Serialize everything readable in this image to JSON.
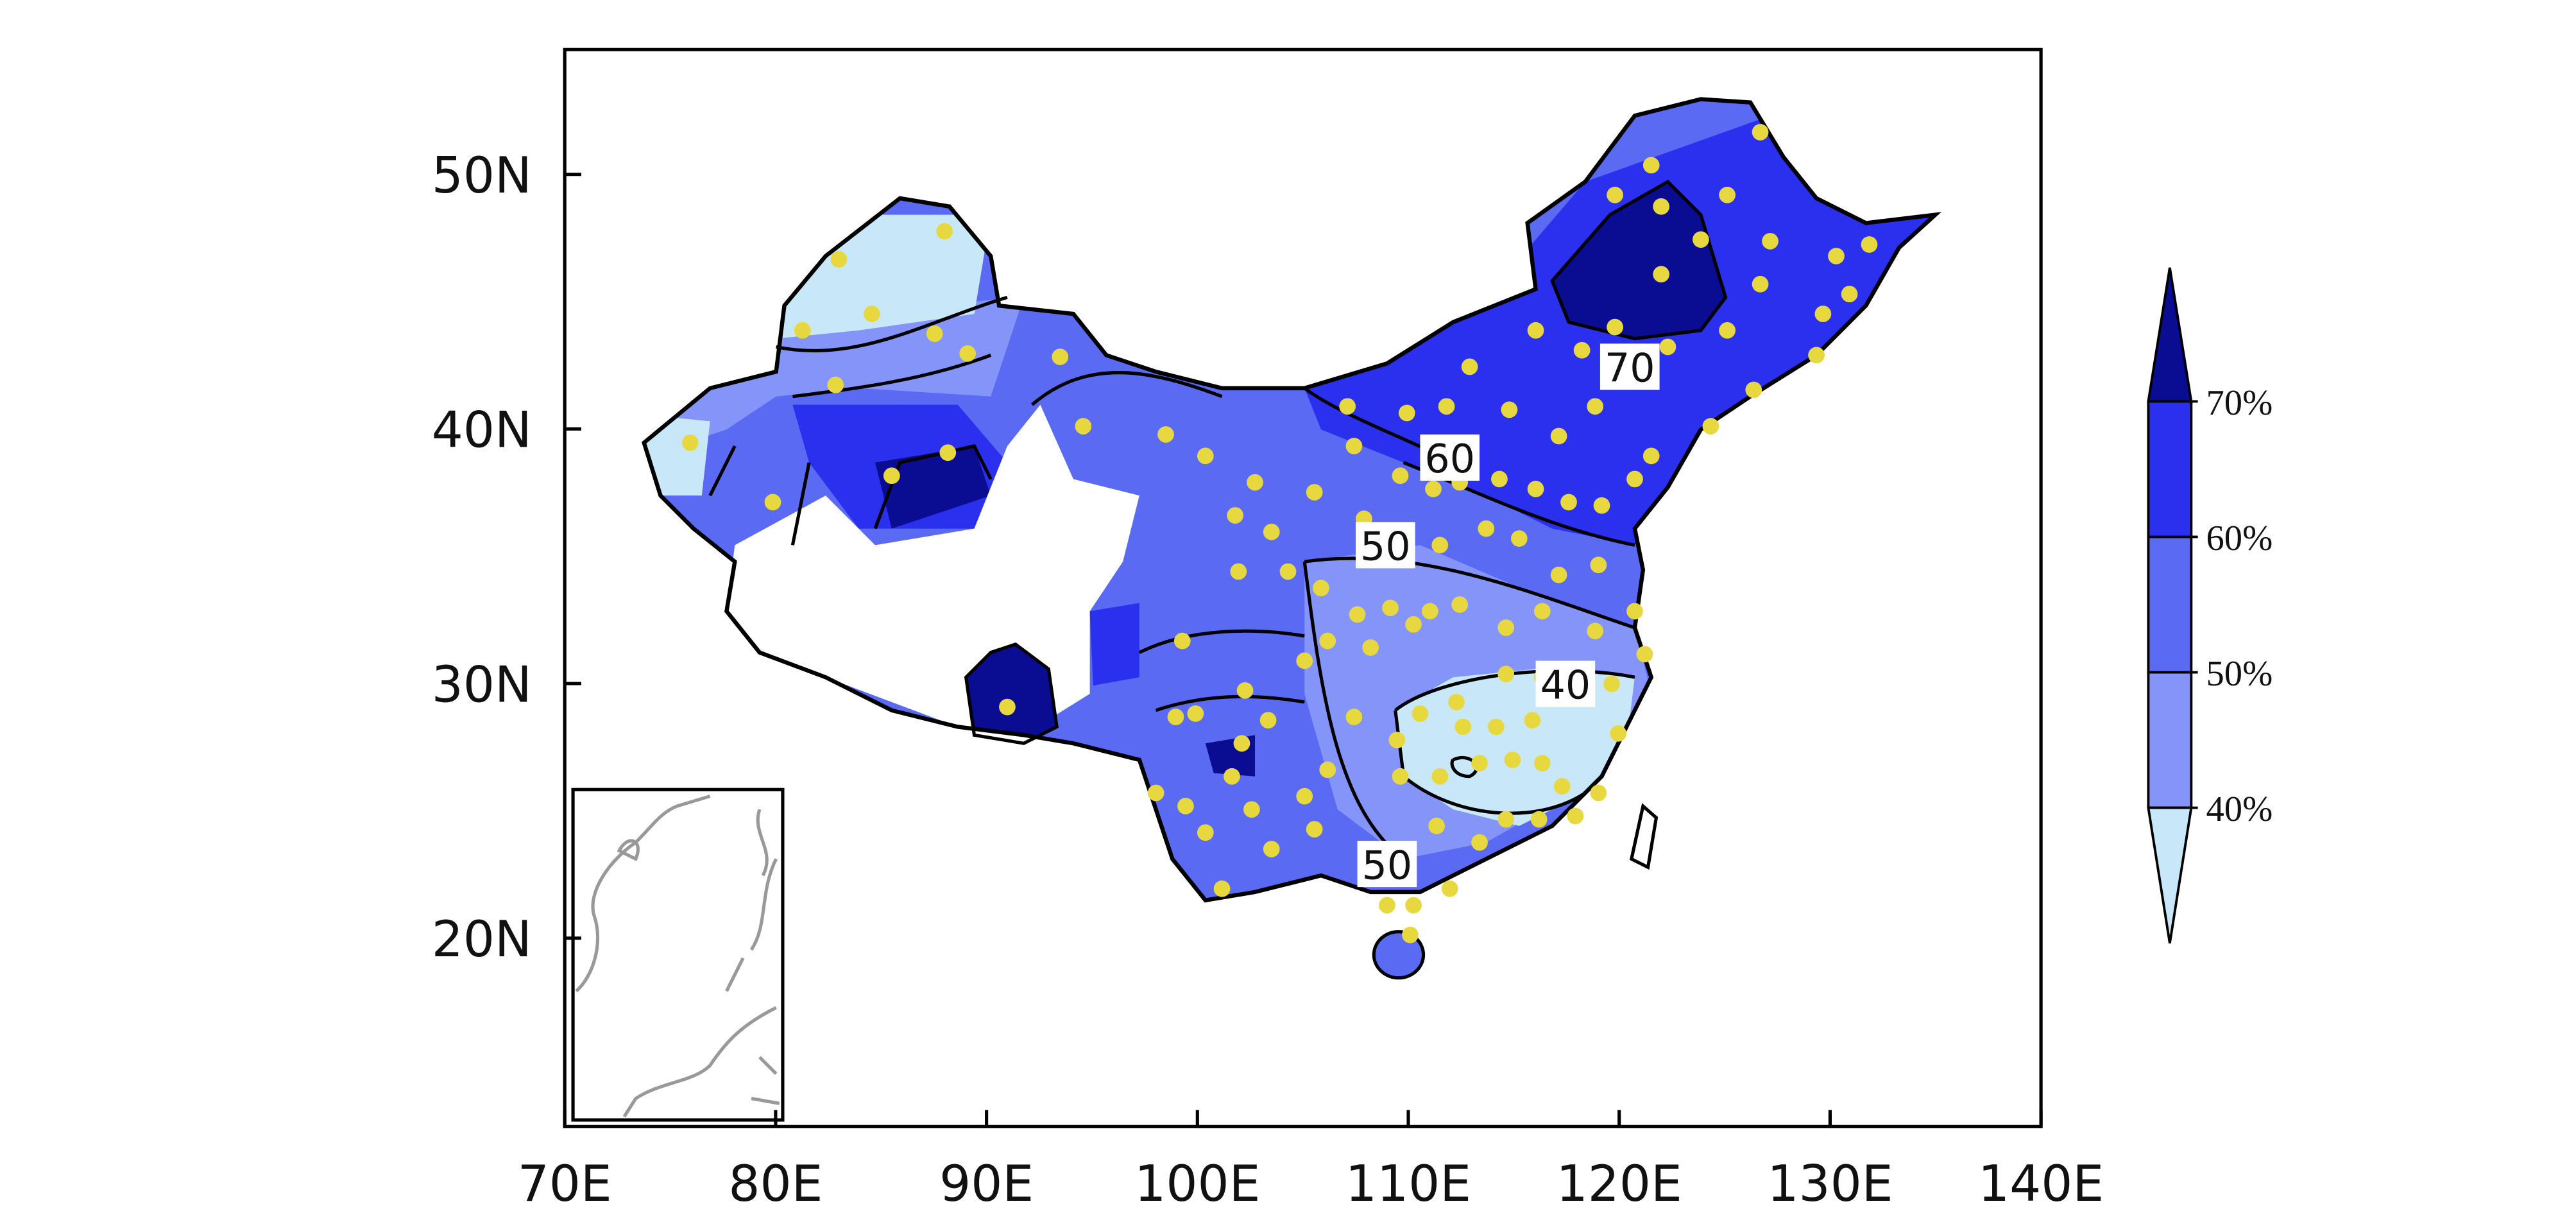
{
  "map": {
    "xlim": [
      70,
      140
    ],
    "ylim": [
      12.6,
      54.9
    ],
    "xticks": [
      {
        "value": 70,
        "label": "70E"
      },
      {
        "value": 80,
        "label": "80E"
      },
      {
        "value": 90,
        "label": "90E"
      },
      {
        "value": 100,
        "label": "100E"
      },
      {
        "value": 110,
        "label": "110E"
      },
      {
        "value": 120,
        "label": "120E"
      },
      {
        "value": 130,
        "label": "130E"
      },
      {
        "value": 140,
        "label": "140E"
      }
    ],
    "yticks": [
      {
        "value": 20,
        "label": "20N"
      },
      {
        "value": 30,
        "label": "30N"
      },
      {
        "value": 40,
        "label": "40N"
      },
      {
        "value": 50,
        "label": "50N"
      }
    ],
    "contour_labels": [
      "70",
      "60",
      "50",
      "40",
      "50"
    ],
    "colorbar": {
      "levels": [
        {
          "value": 40,
          "label": "40%"
        },
        {
          "value": 50,
          "label": "50%"
        },
        {
          "value": 60,
          "label": "60%"
        },
        {
          "value": 70,
          "label": "70%"
        }
      ],
      "colors": [
        "#c8e8fa",
        "#8494f8",
        "#5a6af2",
        "#2a30ee",
        "#0a0c92"
      ]
    }
  }
}
